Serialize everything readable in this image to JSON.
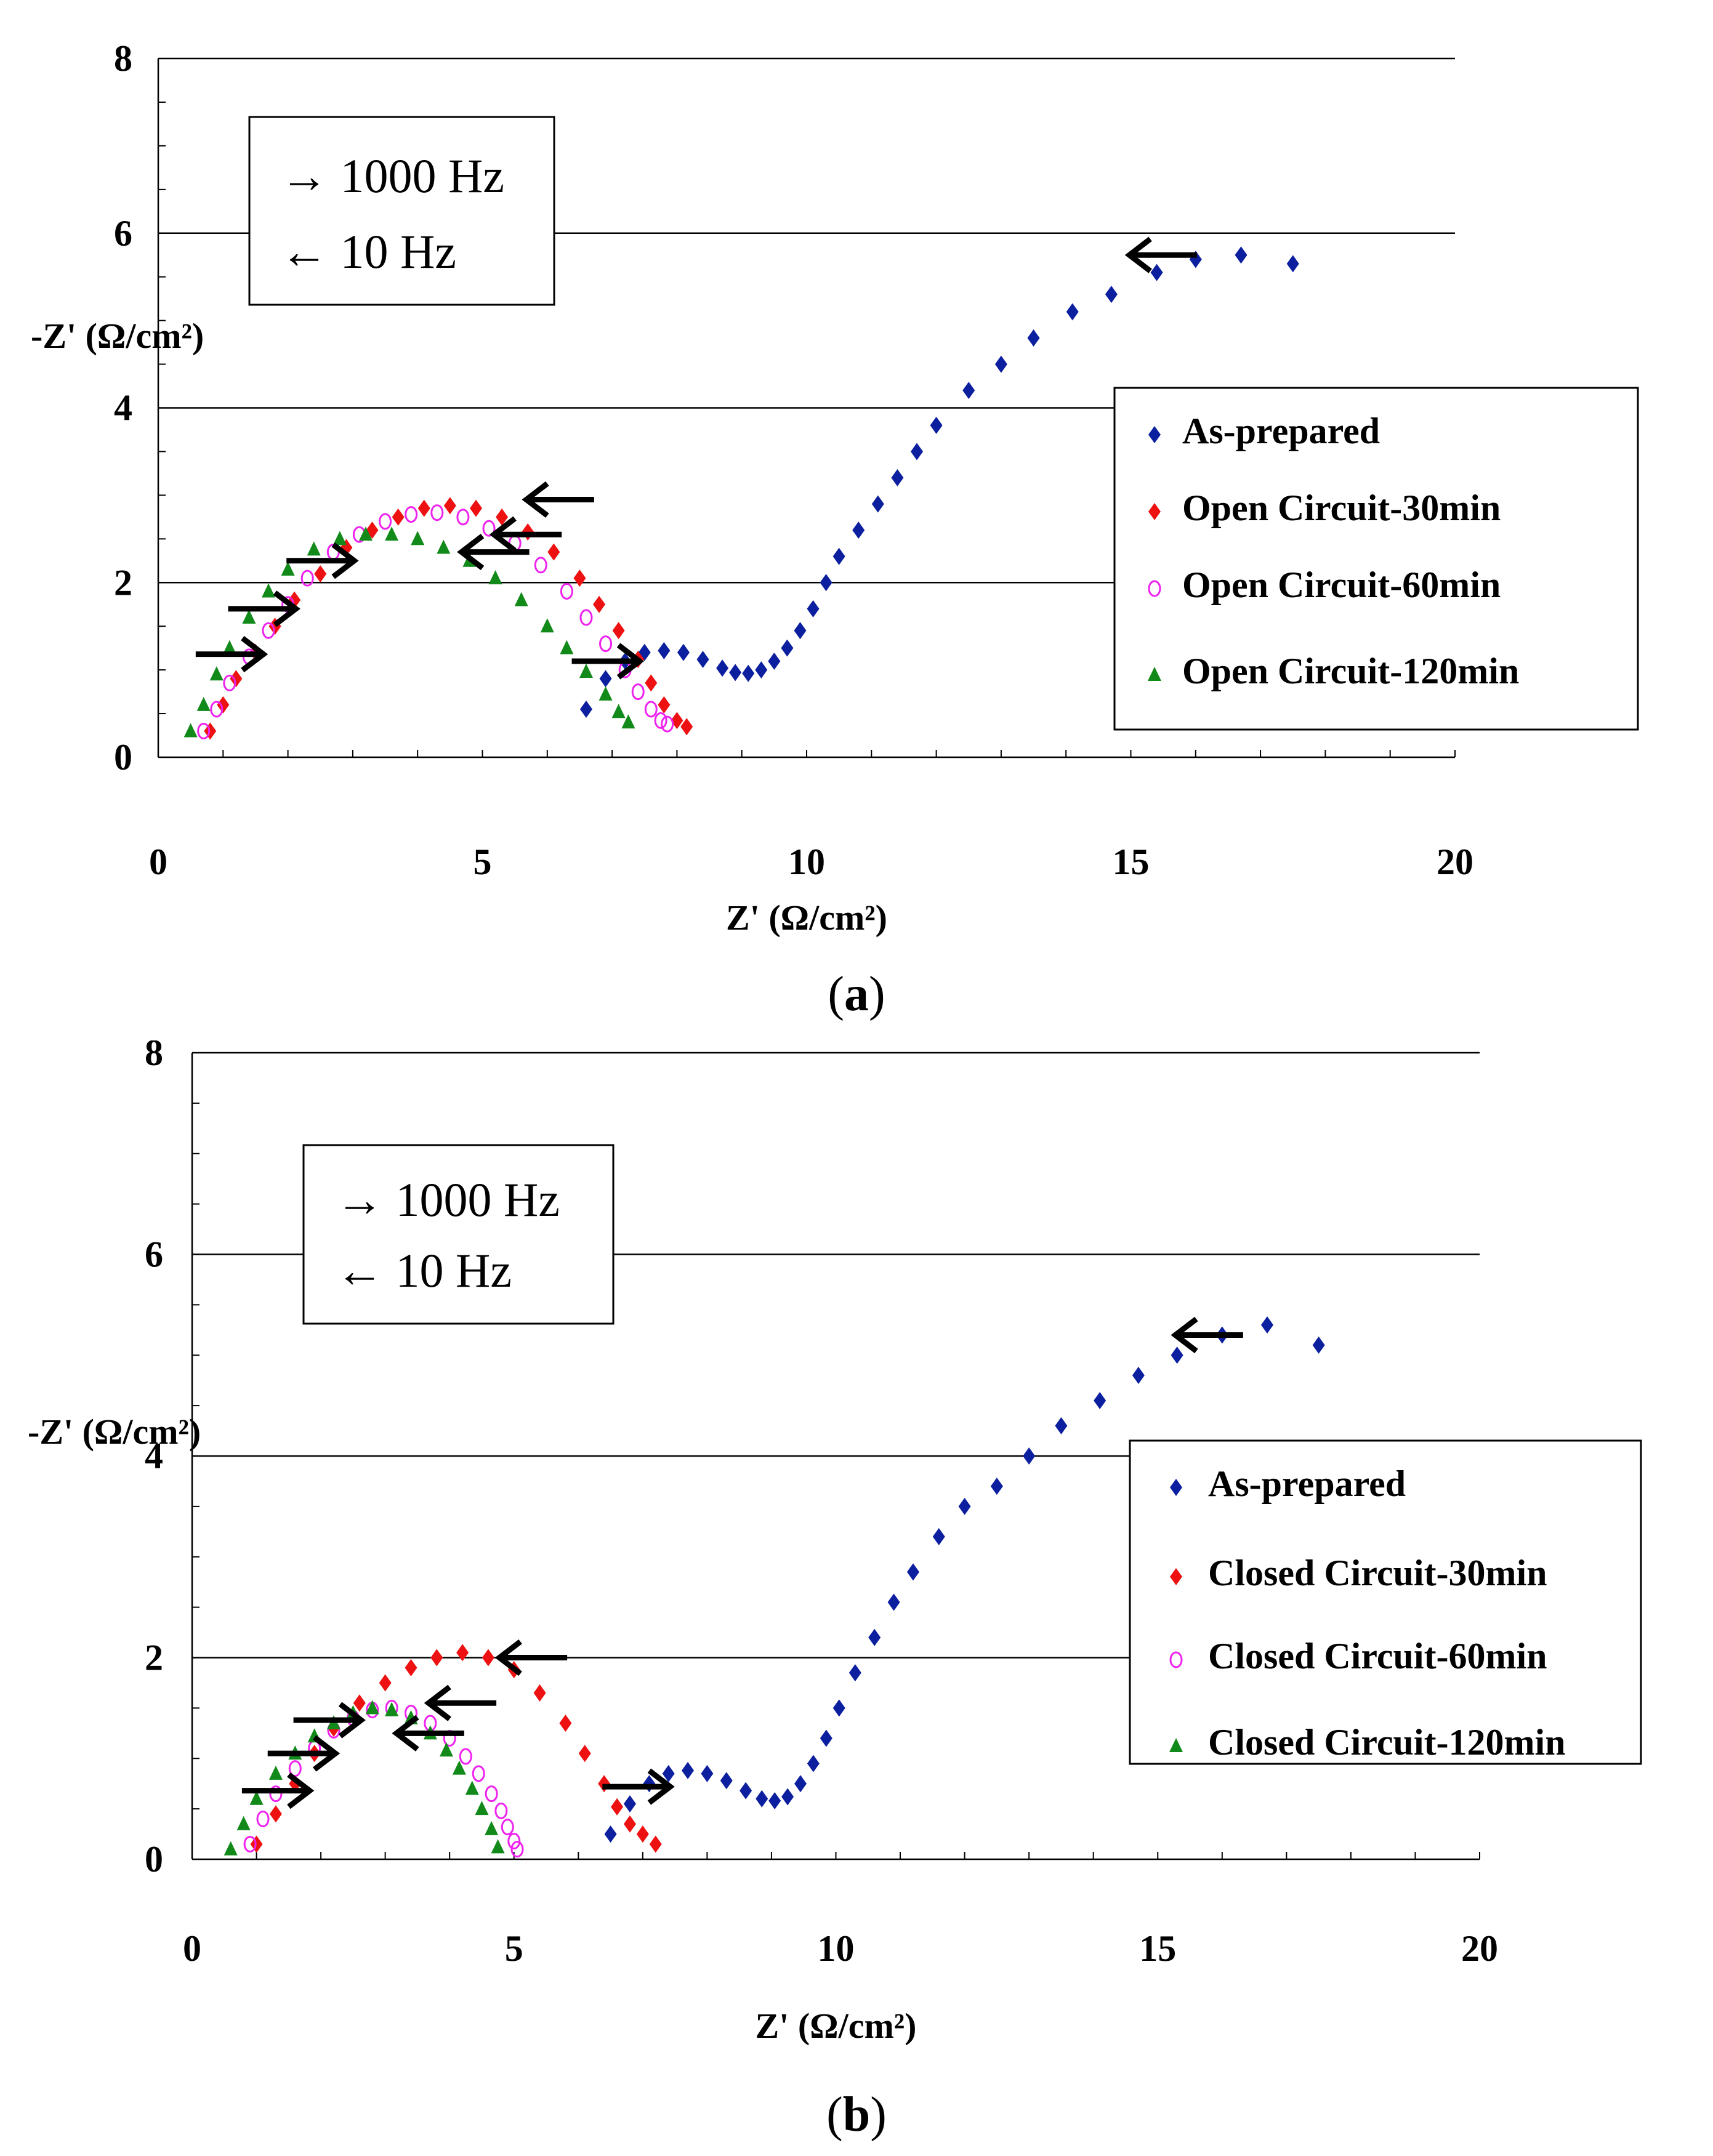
{
  "figure": {
    "panels": [
      {
        "label": "a",
        "freq_box": {
          "line1": "→ 1000 Hz",
          "line2": "← 10 Hz"
        }
      },
      {
        "label": "b",
        "freq_box": {
          "line1": "→ 1000 Hz",
          "line2": "← 10 Hz"
        }
      }
    ]
  },
  "chart_data": [
    {
      "type": "scatter",
      "panel": "a",
      "title": "",
      "xlabel": "Z' (Ω/cm²)",
      "ylabel": "-Z' (Ω/cm²)",
      "xlim": [
        0,
        20
      ],
      "ylim": [
        0,
        8
      ],
      "x_ticks": [
        "0",
        "5",
        "10",
        "15",
        "20"
      ],
      "y_ticks": [
        "0",
        "2",
        "4",
        "6",
        "8"
      ],
      "gridlines_y": [
        2,
        4,
        6,
        8
      ],
      "legend_position": "right",
      "series": [
        {
          "name": "As-prepared",
          "marker": "diamond",
          "color": "#0b1f9f",
          "x": [
            6.6,
            6.9,
            7.2,
            7.5,
            7.8,
            8.1,
            8.4,
            8.7,
            8.9,
            9.1,
            9.3,
            9.5,
            9.7,
            9.9,
            10.1,
            10.3,
            10.5,
            10.8,
            11.1,
            11.4,
            11.7,
            12.0,
            12.5,
            13.0,
            13.5,
            14.1,
            14.7,
            15.4,
            16.0,
            16.7,
            17.5
          ],
          "y": [
            0.55,
            0.9,
            1.1,
            1.2,
            1.22,
            1.2,
            1.12,
            1.02,
            0.97,
            0.96,
            1.0,
            1.1,
            1.25,
            1.45,
            1.7,
            2.0,
            2.3,
            2.6,
            2.9,
            3.2,
            3.5,
            3.8,
            4.2,
            4.5,
            4.8,
            5.1,
            5.3,
            5.55,
            5.7,
            5.75,
            5.65
          ]
        },
        {
          "name": "Open Circuit-30min",
          "marker": "diamond",
          "color": "#ee1111",
          "x": [
            0.8,
            1.0,
            1.2,
            1.5,
            1.8,
            2.1,
            2.5,
            2.9,
            3.3,
            3.7,
            4.1,
            4.5,
            4.9,
            5.3,
            5.7,
            6.1,
            6.5,
            6.8,
            7.1,
            7.4,
            7.6,
            7.8,
            8.0,
            8.15
          ],
          "y": [
            0.3,
            0.6,
            0.9,
            1.2,
            1.5,
            1.8,
            2.1,
            2.4,
            2.6,
            2.75,
            2.85,
            2.88,
            2.85,
            2.75,
            2.58,
            2.35,
            2.05,
            1.75,
            1.45,
            1.12,
            0.85,
            0.6,
            0.42,
            0.35
          ]
        },
        {
          "name": "Open Circuit-60min",
          "marker": "circle",
          "color": "#ee22ee",
          "x": [
            0.7,
            0.9,
            1.1,
            1.4,
            1.7,
            2.0,
            2.3,
            2.7,
            3.1,
            3.5,
            3.9,
            4.3,
            4.7,
            5.1,
            5.5,
            5.9,
            6.3,
            6.6,
            6.9,
            7.2,
            7.4,
            7.6,
            7.75,
            7.85
          ],
          "y": [
            0.3,
            0.55,
            0.85,
            1.15,
            1.45,
            1.75,
            2.05,
            2.35,
            2.55,
            2.7,
            2.78,
            2.8,
            2.75,
            2.62,
            2.45,
            2.2,
            1.9,
            1.6,
            1.3,
            1.0,
            0.75,
            0.55,
            0.42,
            0.38
          ]
        },
        {
          "name": "Open Circuit-120min",
          "marker": "triangle",
          "color": "#128a1a",
          "x": [
            0.5,
            0.7,
            0.9,
            1.1,
            1.4,
            1.7,
            2.0,
            2.4,
            2.8,
            3.2,
            3.6,
            4.0,
            4.4,
            4.8,
            5.2,
            5.6,
            6.0,
            6.3,
            6.6,
            6.9,
            7.1,
            7.25
          ],
          "y": [
            0.3,
            0.6,
            0.95,
            1.25,
            1.6,
            1.9,
            2.15,
            2.38,
            2.5,
            2.55,
            2.55,
            2.5,
            2.4,
            2.25,
            2.05,
            1.8,
            1.5,
            1.25,
            0.98,
            0.72,
            0.52,
            0.4
          ]
        }
      ],
      "arrows": [
        {
          "x": 1.1,
          "y": 1.18,
          "dir": "right"
        },
        {
          "x": 1.6,
          "y": 1.7,
          "dir": "right"
        },
        {
          "x": 2.5,
          "y": 2.25,
          "dir": "right"
        },
        {
          "x": 6.9,
          "y": 1.1,
          "dir": "right"
        },
        {
          "x": 5.2,
          "y": 2.35,
          "dir": "left"
        },
        {
          "x": 5.7,
          "y": 2.55,
          "dir": "left"
        },
        {
          "x": 6.2,
          "y": 2.95,
          "dir": "left"
        },
        {
          "x": 15.5,
          "y": 5.75,
          "dir": "left"
        }
      ]
    },
    {
      "type": "scatter",
      "panel": "b",
      "title": "",
      "xlabel": "Z' (Ω/cm²)",
      "ylabel": "-Z' (Ω/cm²)",
      "xlim": [
        0,
        20
      ],
      "ylim": [
        0,
        8
      ],
      "x_ticks": [
        "0",
        "5",
        "10",
        "15",
        "20"
      ],
      "y_ticks": [
        "0",
        "2",
        "4",
        "6",
        "8"
      ],
      "gridlines_y": [
        2,
        4,
        6,
        8
      ],
      "legend_position": "right",
      "series": [
        {
          "name": "As-prepared",
          "marker": "diamond",
          "color": "#0b1f9f",
          "x": [
            6.5,
            6.8,
            7.1,
            7.4,
            7.7,
            8.0,
            8.3,
            8.6,
            8.85,
            9.05,
            9.25,
            9.45,
            9.65,
            9.85,
            10.05,
            10.3,
            10.6,
            10.9,
            11.2,
            11.6,
            12.0,
            12.5,
            13.0,
            13.5,
            14.1,
            14.7,
            15.3,
            16.0,
            16.7,
            17.5
          ],
          "y": [
            0.25,
            0.55,
            0.75,
            0.85,
            0.88,
            0.85,
            0.78,
            0.68,
            0.6,
            0.58,
            0.62,
            0.75,
            0.95,
            1.2,
            1.5,
            1.85,
            2.2,
            2.55,
            2.85,
            3.2,
            3.5,
            3.7,
            4.0,
            4.3,
            4.55,
            4.8,
            5.0,
            5.2,
            5.3,
            5.1
          ]
        },
        {
          "name": "Closed Circuit-30min",
          "marker": "diamond",
          "color": "#ee1111",
          "x": [
            1.0,
            1.3,
            1.6,
            1.9,
            2.2,
            2.6,
            3.0,
            3.4,
            3.8,
            4.2,
            4.6,
            5.0,
            5.4,
            5.8,
            6.1,
            6.4,
            6.6,
            6.8,
            7.0,
            7.2
          ],
          "y": [
            0.15,
            0.45,
            0.75,
            1.05,
            1.3,
            1.55,
            1.75,
            1.9,
            2.0,
            2.05,
            2.0,
            1.88,
            1.65,
            1.35,
            1.05,
            0.75,
            0.52,
            0.35,
            0.25,
            0.15
          ]
        },
        {
          "name": "Closed Circuit-60min",
          "marker": "circle",
          "color": "#ee22ee",
          "x": [
            0.9,
            1.1,
            1.3,
            1.6,
            1.9,
            2.2,
            2.5,
            2.8,
            3.1,
            3.4,
            3.7,
            4.0,
            4.25,
            4.45,
            4.65,
            4.8,
            4.9,
            5.0,
            5.05
          ],
          "y": [
            0.15,
            0.4,
            0.65,
            0.9,
            1.1,
            1.28,
            1.4,
            1.48,
            1.5,
            1.45,
            1.35,
            1.2,
            1.02,
            0.85,
            0.65,
            0.48,
            0.32,
            0.18,
            0.1
          ]
        },
        {
          "name": "Closed Circuit-120min",
          "marker": "triangle",
          "color": "#128a1a",
          "x": [
            0.6,
            0.8,
            1.0,
            1.3,
            1.6,
            1.9,
            2.2,
            2.5,
            2.8,
            3.1,
            3.4,
            3.7,
            3.95,
            4.15,
            4.35,
            4.5,
            4.65,
            4.75
          ],
          "y": [
            0.1,
            0.35,
            0.6,
            0.85,
            1.05,
            1.22,
            1.35,
            1.45,
            1.5,
            1.48,
            1.4,
            1.25,
            1.08,
            0.9,
            0.7,
            0.5,
            0.3,
            0.12
          ]
        }
      ],
      "arrows": [
        {
          "x": 1.3,
          "y": 0.68,
          "dir": "right"
        },
        {
          "x": 1.7,
          "y": 1.05,
          "dir": "right"
        },
        {
          "x": 2.1,
          "y": 1.38,
          "dir": "right"
        },
        {
          "x": 6.9,
          "y": 0.72,
          "dir": "right"
        },
        {
          "x": 3.7,
          "y": 1.25,
          "dir": "left"
        },
        {
          "x": 4.2,
          "y": 1.55,
          "dir": "left"
        },
        {
          "x": 5.3,
          "y": 2.0,
          "dir": "left"
        },
        {
          "x": 15.8,
          "y": 5.2,
          "dir": "left"
        }
      ]
    }
  ]
}
